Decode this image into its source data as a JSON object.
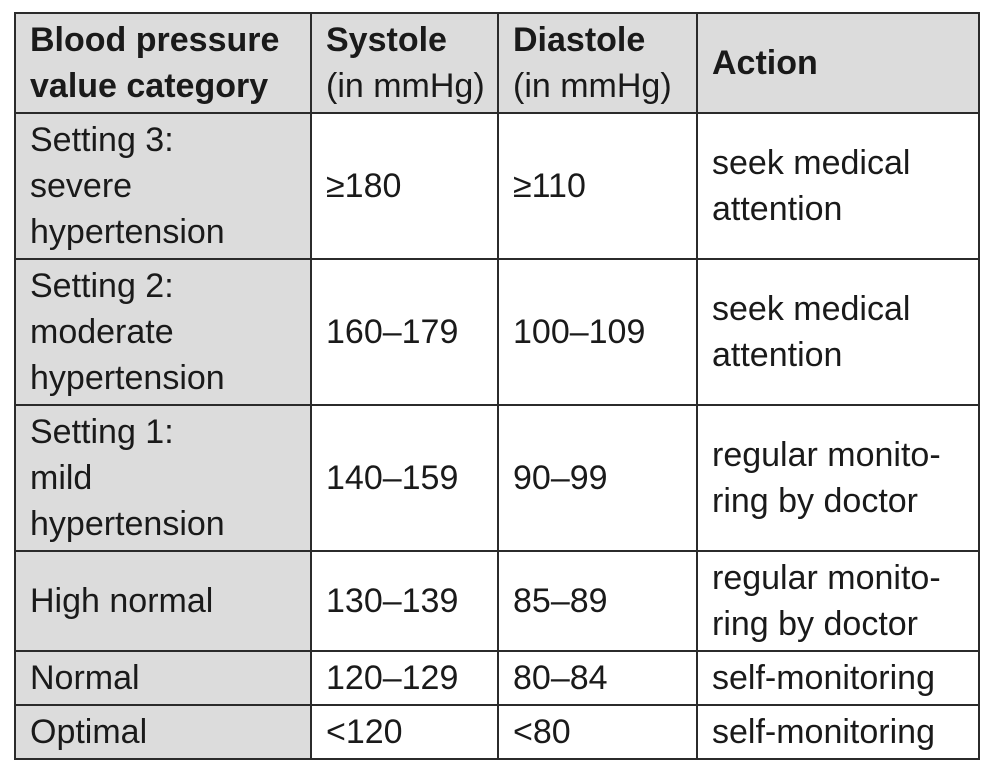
{
  "table": {
    "headers": [
      {
        "bold": "Blood pressure",
        "bold2": "value category",
        "unit": ""
      },
      {
        "bold": "Systole",
        "bold2": "",
        "unit": "(in mmHg)"
      },
      {
        "bold": "Diastole",
        "bold2": "",
        "unit": "(in mmHg)"
      },
      {
        "bold": "Action",
        "bold2": "",
        "unit": ""
      }
    ],
    "rows": [
      {
        "category_lines": [
          "Setting 3:",
          "severe",
          "hypertension"
        ],
        "systole": "≥180",
        "diastole": "≥110",
        "action_lines": [
          "seek medical",
          "attention"
        ]
      },
      {
        "category_lines": [
          "Setting 2:",
          "moderate",
          "hypertension"
        ],
        "systole": "160–179",
        "diastole": "100–109",
        "action_lines": [
          "seek medical",
          "attention"
        ]
      },
      {
        "category_lines": [
          "Setting 1:",
          "mild",
          "hypertension"
        ],
        "systole": "140–159",
        "diastole": "90–99",
        "action_lines": [
          "regular monito-",
          "ring by doctor"
        ]
      },
      {
        "category_lines": [
          "High normal"
        ],
        "systole": "130–139",
        "diastole": "85–89",
        "action_lines": [
          "regular monito-",
          "ring by doctor"
        ]
      },
      {
        "category_lines": [
          "Normal"
        ],
        "systole": "120–129",
        "diastole": "80–84",
        "action_lines": [
          "self-monitoring"
        ]
      },
      {
        "category_lines": [
          "Optimal"
        ],
        "systole": "<120",
        "diastole": "<80",
        "action_lines": [
          "self-monitoring"
        ]
      }
    ]
  },
  "colors": {
    "header_bg": "#dcdcdc",
    "category_bg": "#dcdcdc",
    "border": "#2b2b2b"
  }
}
